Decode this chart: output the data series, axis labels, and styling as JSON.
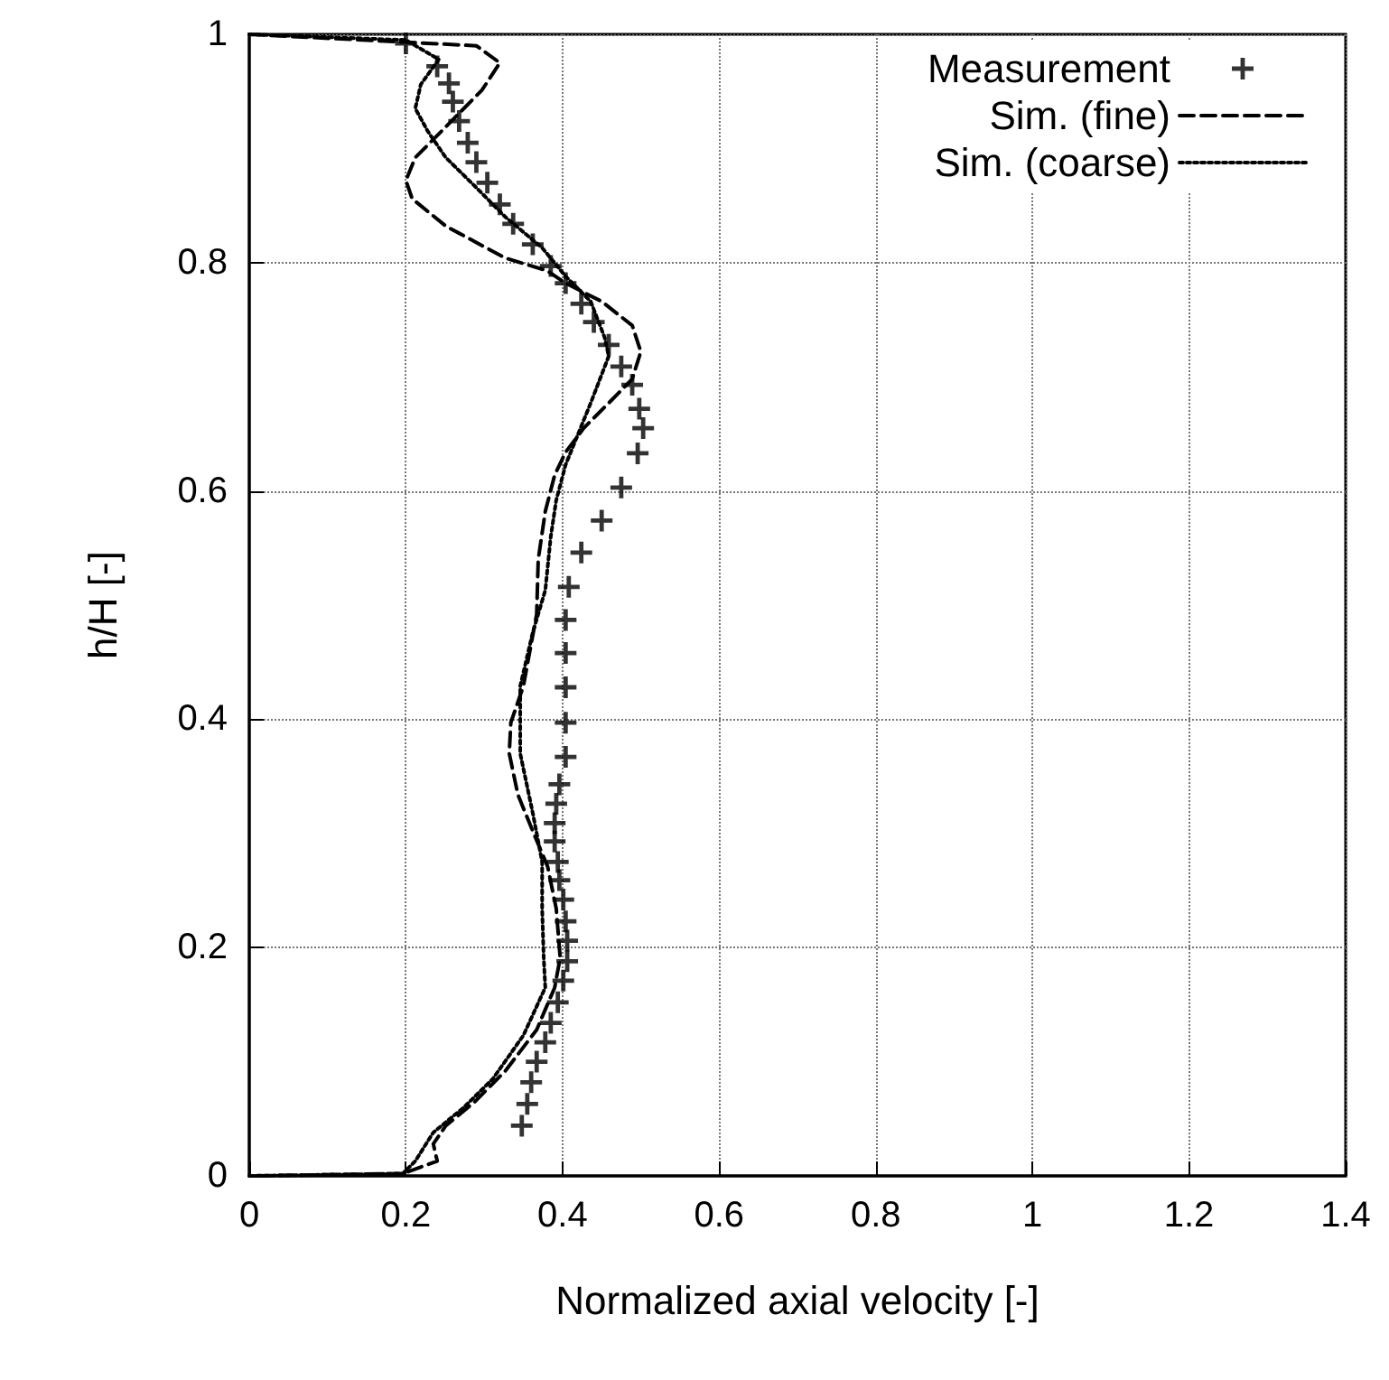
{
  "chart_data": {
    "type": "line",
    "xlabel": "Normalized axial velocity [-]",
    "ylabel": "h/H [-]",
    "xlim": [
      0,
      1.4
    ],
    "ylim": [
      0,
      1
    ],
    "xticks": [
      0,
      0.2,
      0.4,
      0.6,
      0.8,
      1,
      1.2,
      1.4
    ],
    "yticks": [
      0,
      0.2,
      0.4,
      0.6,
      0.8,
      1
    ],
    "grid": true,
    "legend": "top right",
    "series": [
      {
        "name": "Measurement",
        "type": "scatter",
        "marker": "cross",
        "color": "#000000",
        "x": [
          0.2,
          0.24,
          0.255,
          0.26,
          0.268,
          0.279,
          0.29,
          0.304,
          0.32,
          0.337,
          0.362,
          0.385,
          0.404,
          0.424,
          0.44,
          0.459,
          0.475,
          0.489,
          0.498,
          0.503,
          0.496,
          0.475,
          0.45,
          0.424,
          0.408,
          0.404,
          0.404,
          0.404,
          0.404,
          0.404,
          0.396,
          0.392,
          0.39,
          0.39,
          0.394,
          0.396,
          0.401,
          0.404,
          0.406,
          0.406,
          0.401,
          0.394,
          0.385,
          0.378,
          0.367,
          0.36,
          0.355,
          0.348
        ],
        "values": [
          0.992,
          0.972,
          0.957,
          0.941,
          0.924,
          0.905,
          0.888,
          0.87,
          0.851,
          0.834,
          0.816,
          0.797,
          0.782,
          0.764,
          0.748,
          0.728,
          0.709,
          0.693,
          0.672,
          0.655,
          0.633,
          0.603,
          0.574,
          0.546,
          0.516,
          0.487,
          0.458,
          0.428,
          0.397,
          0.367,
          0.343,
          0.326,
          0.309,
          0.293,
          0.275,
          0.259,
          0.242,
          0.223,
          0.206,
          0.188,
          0.171,
          0.152,
          0.134,
          0.117,
          0.1,
          0.082,
          0.063,
          0.044
        ]
      },
      {
        "name": "Sim. (fine)",
        "line_style": "dashed",
        "marker": "none",
        "color": "#000000",
        "x": [
          0,
          0.29,
          0.32,
          0.297,
          0.251,
          0.212,
          0.2,
          0.208,
          0.251,
          0.327,
          0.38,
          0.404,
          0.45,
          0.489,
          0.5,
          0.489,
          0.459,
          0.427,
          0.404,
          0.39,
          0.378,
          0.369,
          0.367,
          0.35,
          0.334,
          0.332,
          0.343,
          0.362,
          0.381,
          0.392,
          0.397,
          0.39,
          0.367,
          0.327,
          0.288,
          0.251,
          0.235,
          0.24,
          0.196,
          0
        ],
        "values": [
          1,
          0.99,
          0.975,
          0.951,
          0.919,
          0.892,
          0.872,
          0.856,
          0.832,
          0.804,
          0.793,
          0.782,
          0.766,
          0.745,
          0.722,
          0.698,
          0.677,
          0.655,
          0.634,
          0.614,
          0.582,
          0.54,
          0.492,
          0.429,
          0.397,
          0.37,
          0.334,
          0.302,
          0.271,
          0.234,
          0.191,
          0.165,
          0.128,
          0.092,
          0.065,
          0.044,
          0.028,
          0.013,
          0.002,
          0
        ]
      },
      {
        "name": "Sim. (coarse)",
        "line_style": "dotted",
        "marker": "none",
        "color": "#000000",
        "x": [
          0,
          0.2,
          0.242,
          0.219,
          0.212,
          0.228,
          0.251,
          0.288,
          0.327,
          0.374,
          0.404,
          0.436,
          0.454,
          0.459,
          0.436,
          0.42,
          0.404,
          0.392,
          0.385,
          0.378,
          0.362,
          0.346,
          0.346,
          0.362,
          0.374,
          0.374,
          0.376,
          0.378,
          0.35,
          0.311,
          0.274,
          0.235,
          0.212,
          0.196,
          0
        ],
        "values": [
          1,
          0.995,
          0.978,
          0.956,
          0.935,
          0.915,
          0.892,
          0.867,
          0.84,
          0.813,
          0.788,
          0.766,
          0.734,
          0.718,
          0.677,
          0.65,
          0.623,
          0.592,
          0.56,
          0.513,
          0.476,
          0.429,
          0.37,
          0.318,
          0.275,
          0.234,
          0.191,
          0.165,
          0.123,
          0.085,
          0.06,
          0.038,
          0.013,
          0.002,
          0
        ]
      }
    ]
  }
}
